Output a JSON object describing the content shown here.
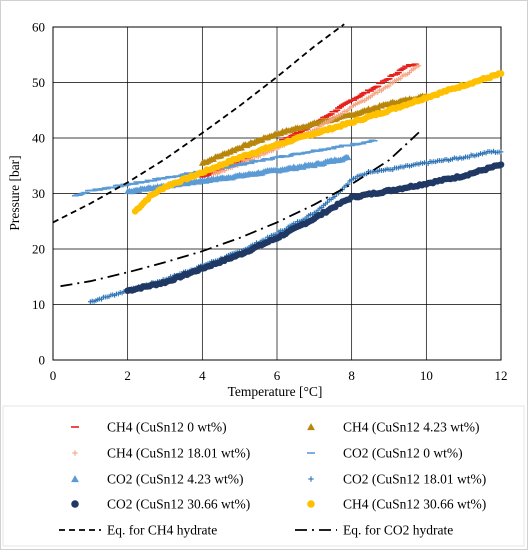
{
  "chart_data": {
    "type": "scatter",
    "xlabel": "Temperature [°C]",
    "ylabel": "Pressure [bar]",
    "xlim": [
      0,
      12
    ],
    "ylim": [
      0,
      60
    ],
    "xticks": [
      0,
      2,
      4,
      6,
      8,
      10,
      12
    ],
    "yticks": [
      0,
      10,
      20,
      30,
      40,
      50,
      60
    ],
    "grid": true,
    "legend_position": "bottom, two columns",
    "series": [
      {
        "name": "CH4 (CuSn12 0 wt%)",
        "marker": "dash",
        "color": "#e8201a",
        "points": [
          [
            4.0,
            33.0
          ],
          [
            5.0,
            35.8
          ],
          [
            6.0,
            39.0
          ],
          [
            7.0,
            42.5
          ],
          [
            8.0,
            46.8
          ],
          [
            8.6,
            49.0
          ],
          [
            9.0,
            50.8
          ],
          [
            9.5,
            53.0
          ],
          [
            9.7,
            53.3
          ]
        ]
      },
      {
        "name": "CH4 (CuSn12 4.23 wt%)",
        "marker": "triangle",
        "color": "#b8860b",
        "points": [
          [
            4.0,
            35.5
          ],
          [
            5.0,
            38.3
          ],
          [
            6.0,
            40.8
          ],
          [
            7.0,
            42.6
          ],
          [
            8.0,
            44.2
          ],
          [
            9.0,
            46.2
          ],
          [
            10.0,
            47.6
          ]
        ]
      },
      {
        "name": "CH4 (CuSn12 18.01 wt%)",
        "marker": "plus",
        "color": "#f4a582",
        "points": [
          [
            4.3,
            33.5
          ],
          [
            5.0,
            35.3
          ],
          [
            6.0,
            38.2
          ],
          [
            7.0,
            41.5
          ],
          [
            8.0,
            45.5
          ],
          [
            9.0,
            49.5
          ],
          [
            9.8,
            53.0
          ]
        ]
      },
      {
        "name": "CO2 (CuSn12 0 wt%)",
        "marker": "dash",
        "color": "#5b9bd5",
        "points": [
          [
            0.6,
            29.6
          ],
          [
            1.0,
            30.5
          ],
          [
            2.0,
            31.6
          ],
          [
            3.0,
            32.8
          ],
          [
            4.0,
            34.0
          ],
          [
            5.0,
            35.2
          ],
          [
            6.0,
            36.5
          ],
          [
            7.0,
            37.7
          ],
          [
            8.0,
            38.8
          ],
          [
            8.6,
            39.5
          ]
        ]
      },
      {
        "name": "CO2 (CuSn12 4.23 wt%)",
        "marker": "triangle",
        "color": "#5b9bd5",
        "points": [
          [
            2.0,
            30.4
          ],
          [
            3.0,
            31.4
          ],
          [
            4.0,
            32.3
          ],
          [
            5.0,
            33.2
          ],
          [
            6.0,
            34.2
          ],
          [
            7.0,
            35.2
          ],
          [
            7.9,
            36.5
          ]
        ]
      },
      {
        "name": "CO2 (CuSn12 18.01 wt%)",
        "marker": "plus",
        "color": "#2e75b6",
        "points": [
          [
            1.0,
            10.5
          ],
          [
            2.0,
            12.5
          ],
          [
            3.0,
            14.5
          ],
          [
            4.0,
            17.0
          ],
          [
            5.0,
            19.5
          ],
          [
            6.0,
            22.8
          ],
          [
            7.0,
            26.5
          ],
          [
            7.7,
            30.5
          ],
          [
            8.0,
            32.5
          ],
          [
            8.5,
            34.0
          ],
          [
            9.0,
            34.3
          ],
          [
            10.0,
            35.5
          ],
          [
            11.0,
            36.5
          ],
          [
            11.7,
            37.5
          ],
          [
            12.0,
            37.5
          ]
        ]
      },
      {
        "name": "CO2 (CuSn12 30.66 wt%)",
        "marker": "circle",
        "color": "#203864",
        "points": [
          [
            2.0,
            12.5
          ],
          [
            3.0,
            14.0
          ],
          [
            4.0,
            16.5
          ],
          [
            5.0,
            19.0
          ],
          [
            6.0,
            22.0
          ],
          [
            7.0,
            25.5
          ],
          [
            7.5,
            27.5
          ],
          [
            8.0,
            29.3
          ],
          [
            9.0,
            30.5
          ],
          [
            10.0,
            31.8
          ],
          [
            11.0,
            33.2
          ],
          [
            12.0,
            35.2
          ]
        ]
      },
      {
        "name": "CH4 (CuSn12 30.66 wt%)",
        "marker": "circle",
        "color": "#ffc000",
        "points": [
          [
            2.2,
            26.8
          ],
          [
            2.6,
            29.5
          ],
          [
            3.0,
            31.2
          ],
          [
            4.0,
            33.8
          ],
          [
            5.0,
            36.5
          ],
          [
            6.0,
            38.8
          ],
          [
            7.0,
            40.8
          ],
          [
            8.0,
            42.8
          ],
          [
            9.0,
            45.0
          ],
          [
            10.0,
            47.3
          ],
          [
            11.0,
            49.5
          ],
          [
            12.0,
            51.6
          ]
        ]
      },
      {
        "name": "Eq. for CH4 hydrate",
        "marker": "line-dash",
        "color": "#000000",
        "points": [
          [
            0,
            24.8
          ],
          [
            1,
            28.2
          ],
          [
            2,
            32.0
          ],
          [
            3,
            36.2
          ],
          [
            4,
            40.9
          ],
          [
            5,
            45.8
          ],
          [
            6,
            51.0
          ],
          [
            7,
            56.5
          ],
          [
            7.8,
            60.5
          ]
        ]
      },
      {
        "name": "Eq. for CO2 hydrate",
        "marker": "line-dashdot",
        "color": "#000000",
        "points": [
          [
            0.2,
            13.3
          ],
          [
            1,
            14.2
          ],
          [
            2,
            15.8
          ],
          [
            3,
            17.6
          ],
          [
            4,
            19.6
          ],
          [
            5,
            22.0
          ],
          [
            6,
            24.8
          ],
          [
            7,
            28.0
          ],
          [
            8,
            31.7
          ],
          [
            9,
            36.0
          ],
          [
            9.8,
            41.0
          ]
        ]
      }
    ]
  }
}
